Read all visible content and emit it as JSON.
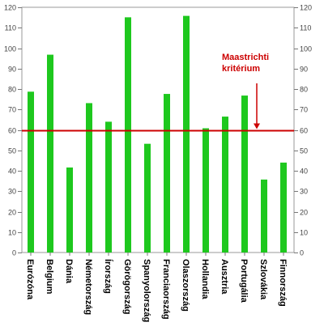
{
  "chart_data": {
    "type": "bar",
    "categories": [
      "Eurózóna",
      "Belgium",
      "Dánia",
      "Németország",
      "Írország",
      "Görögország",
      "Spanyolország",
      "Franciaország",
      "Olaszország",
      "Hollandia",
      "Ausztria",
      "Portugália",
      "Szlovákia",
      "Finnország"
    ],
    "values": [
      78.7,
      96.8,
      41.6,
      73.1,
      64.0,
      115.1,
      53.2,
      77.6,
      115.8,
      60.8,
      66.5,
      76.8,
      35.7,
      44.0
    ],
    "ylim": [
      0,
      120
    ],
    "yticks": [
      0,
      10,
      20,
      30,
      40,
      50,
      60,
      70,
      80,
      90,
      100,
      110,
      120
    ],
    "y_axis_sides": "both",
    "grid": false,
    "bar_color": "#1ec81e",
    "reference_line": {
      "value": 60,
      "color": "#cc0000",
      "label_lines": [
        "Maastrichti",
        "kritérium"
      ]
    }
  }
}
